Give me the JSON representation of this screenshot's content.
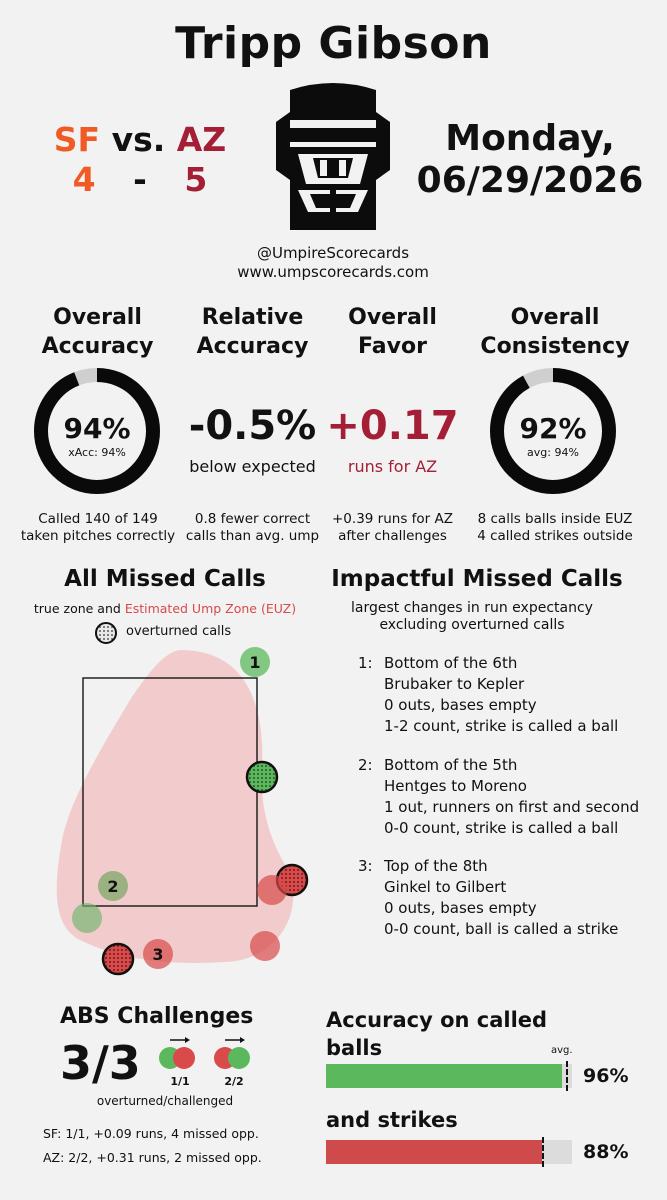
{
  "umpire_name": "Tripp Gibson",
  "matchup": {
    "away_team": "SF",
    "vs": "vs.",
    "home_team": "AZ",
    "away_score": "4",
    "dash": "-",
    "home_score": "5",
    "away_color": "#f05a24",
    "home_color": "#a41e35"
  },
  "date": {
    "weekday": "Monday,",
    "full": "06/29/2026"
  },
  "credits": {
    "handle": "@UmpireScorecards",
    "site": "www.umpscorecards.com"
  },
  "mask_icon": "umpire-mask-icon",
  "stats": {
    "overall_accuracy": {
      "heading_1": "Overall",
      "heading_2": "Accuracy",
      "value": "94%",
      "sub": "xAcc: 94%",
      "fill_fraction": 0.94,
      "note_1": "Called 140 of 149",
      "note_2": "taken pitches correctly"
    },
    "relative_accuracy": {
      "heading_1": "Relative",
      "heading_2": "Accuracy",
      "value": "-0.5%",
      "sub": "below expected",
      "note_1": "0.8 fewer correct",
      "note_2": "calls than avg. ump"
    },
    "overall_favor": {
      "heading_1": "Overall",
      "heading_2": "Favor",
      "value": "+0.17",
      "sub": "runs for AZ",
      "note_1": "+0.39 runs for AZ",
      "note_2": "after challenges"
    },
    "overall_consistency": {
      "heading_1": "Overall",
      "heading_2": "Consistency",
      "value": "92%",
      "sub": "avg: 94%",
      "fill_fraction": 0.92,
      "note_1": "8 calls balls inside EUZ",
      "note_2": "4 called strikes outside"
    }
  },
  "missed_calls": {
    "title": "All Missed Calls",
    "subtitle_prefix": "true zone and ",
    "subtitle_highlight": "Estimated Ump Zone (EUZ)",
    "legend_label": "overturned calls",
    "pitches": [
      {
        "label": "1",
        "type": "ball_called_strike_labeled"
      },
      {
        "label": "",
        "type": "overturned_green"
      },
      {
        "label": "",
        "type": "overturned_red"
      },
      {
        "label": "",
        "type": "missed_red"
      },
      {
        "label": "2",
        "type": "ball_called_strike_labeled"
      },
      {
        "label": "",
        "type": "missed_green"
      },
      {
        "label": "",
        "type": "missed_red"
      },
      {
        "label": "",
        "type": "overturned_red"
      },
      {
        "label": "3",
        "type": "strike_called_ball_labeled"
      }
    ]
  },
  "impactful": {
    "title": "Impactful Missed Calls",
    "subtitle_1": "largest changes in run expectancy",
    "subtitle_2": "excluding overturned calls",
    "items": [
      {
        "num": "1:",
        "line1": "Bottom of the 6th",
        "line2": "Brubaker to Kepler",
        "line3": "0 outs, bases empty",
        "line4": "1-2 count, strike is called a ball"
      },
      {
        "num": "2:",
        "line1": "Bottom of the 5th",
        "line2": "Hentges to Moreno",
        "line3": "1 out, runners on first and second",
        "line4": "0-0 count, strike is called a ball"
      },
      {
        "num": "3:",
        "line1": "Top of the 8th",
        "line2": "Ginkel to Gilbert",
        "line3": "0 outs, bases empty",
        "line4": "0-0 count, ball is called a strike"
      }
    ]
  },
  "abs": {
    "title": "ABS Challenges",
    "score": "3/3",
    "sub": "overturned/challenged",
    "icon1_label": "1/1",
    "icon2_label": "2/2",
    "sf_line": "SF: 1/1, +0.09 runs, 4 missed opp.",
    "az_line": "AZ: 2/2, +0.31 runs, 2 missed opp."
  },
  "accuracy_bars": {
    "title_1": "Accuracy on called",
    "title_2": "balls",
    "avg_label": "avg.",
    "balls_value": "96%",
    "balls_fraction": 0.96,
    "balls_avg_fraction": 0.975,
    "balls_color": "#5cb85c",
    "strikes_title": "and strikes",
    "strikes_value": "88%",
    "strikes_fraction": 0.88,
    "strikes_avg_fraction": 0.88,
    "strikes_color": "#cf4a4a"
  }
}
